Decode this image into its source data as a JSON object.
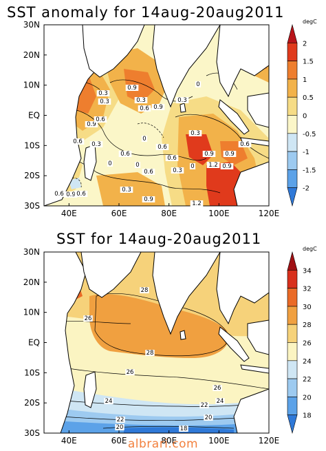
{
  "panels": [
    {
      "title": "SST anomaly for 14aug-20aug2011",
      "lat_labels": [
        "30N",
        "20N",
        "10N",
        "EQ",
        "10S",
        "20S",
        "30S"
      ],
      "lon_labels": [
        "40E",
        "60E",
        "80E",
        "100E",
        "120E"
      ],
      "colorbar": {
        "units": "degC",
        "ticks": [
          "2",
          "1.5",
          "1",
          "0.5",
          "0",
          "-0.5",
          "-1",
          "-1.5",
          "-2"
        ],
        "colors": [
          "#b8141a",
          "#e03a1c",
          "#ee7e2e",
          "#f2b24a",
          "#f6dc86",
          "#fbf6c8",
          "#cfe6f4",
          "#9dcaf0",
          "#5ca2e8",
          "#2f79d8"
        ]
      },
      "contour_labels": [
        "0.3",
        "0.3",
        "0.3",
        "0.9",
        "0.9",
        "0.6",
        "0",
        "0.3",
        "0.9",
        "0.6",
        "0.6",
        "0.3",
        "0",
        "0.6",
        "0",
        "0.3",
        "0.9",
        "0.6",
        "0",
        "0.6",
        "0.6",
        "0",
        "0.3",
        "1.2",
        "0.9",
        "0.9",
        "0.6",
        "0.9",
        "0.6",
        "0.3",
        "0.9",
        "0.6",
        "1.2"
      ]
    },
    {
      "title": "SST for 14aug-20aug2011",
      "lat_labels": [
        "30N",
        "20N",
        "10N",
        "EQ",
        "10S",
        "20S",
        "30S"
      ],
      "lon_labels": [
        "40E",
        "60E",
        "80E",
        "100E",
        "120E"
      ],
      "colorbar": {
        "units": "degC",
        "ticks": [
          "34",
          "32",
          "30",
          "28",
          "26",
          "24",
          "22",
          "20",
          "18"
        ],
        "colors": [
          "#a01014",
          "#d8301c",
          "#ea6a26",
          "#f0a040",
          "#f6d27a",
          "#fbf4c2",
          "#cfe6f4",
          "#9dcaf0",
          "#5ca2e8",
          "#2f79d8"
        ]
      },
      "contour_labels": [
        "28",
        "26",
        "28",
        "26",
        "26",
        "24",
        "24",
        "22",
        "22",
        "20",
        "20",
        "18"
      ]
    }
  ],
  "watermark": "albrari.com"
}
